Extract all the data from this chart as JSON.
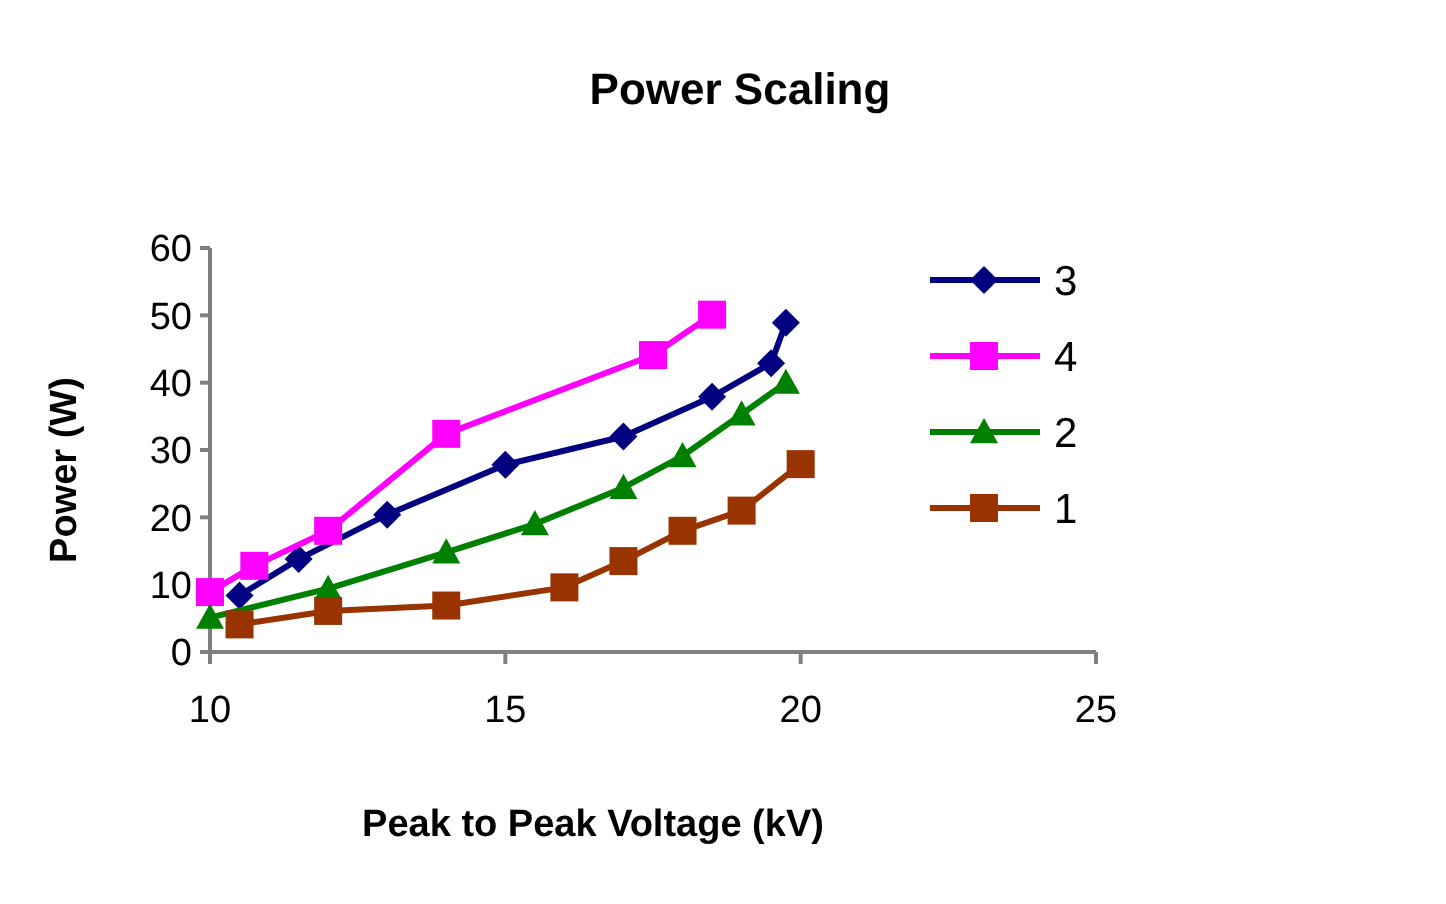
{
  "chart_data": {
    "type": "line",
    "title": "Power Scaling",
    "xlabel": "Peak to Peak Voltage (kV)",
    "ylabel": "Power (W)",
    "xlim": [
      10,
      25
    ],
    "xticks": [
      10,
      15,
      20,
      25
    ],
    "ylim": [
      0,
      60
    ],
    "yticks": [
      0,
      10,
      20,
      30,
      40,
      50,
      60
    ],
    "grid": false,
    "legend": "right",
    "series": [
      {
        "name": "3",
        "color": "#000080",
        "marker": "diamond",
        "x": [
          10.5,
          11.5,
          13,
          15,
          17,
          18.5,
          19.5,
          19.75
        ],
        "values": [
          8.4,
          13.8,
          20.4,
          27.8,
          32,
          37.9,
          42.9,
          48.9
        ]
      },
      {
        "name": "4",
        "color": "#ff00ff",
        "marker": "square",
        "x": [
          10,
          10.75,
          12,
          14,
          17.5,
          18.5
        ],
        "values": [
          8.9,
          12.8,
          18,
          32.4,
          44.1,
          50.1
        ]
      },
      {
        "name": "2",
        "color": "#008000",
        "marker": "triangle",
        "x": [
          10,
          12,
          14,
          15.5,
          17,
          18,
          19,
          19.75
        ],
        "values": [
          5.1,
          9.4,
          14.8,
          19,
          24.4,
          29.1,
          35.3,
          40
        ]
      },
      {
        "name": "1",
        "color": "#993300",
        "marker": "square",
        "x": [
          10.5,
          12,
          14,
          16,
          17,
          18,
          19,
          20
        ],
        "values": [
          4.1,
          6.1,
          6.9,
          9.6,
          13.5,
          18,
          21,
          27.9
        ]
      }
    ]
  }
}
